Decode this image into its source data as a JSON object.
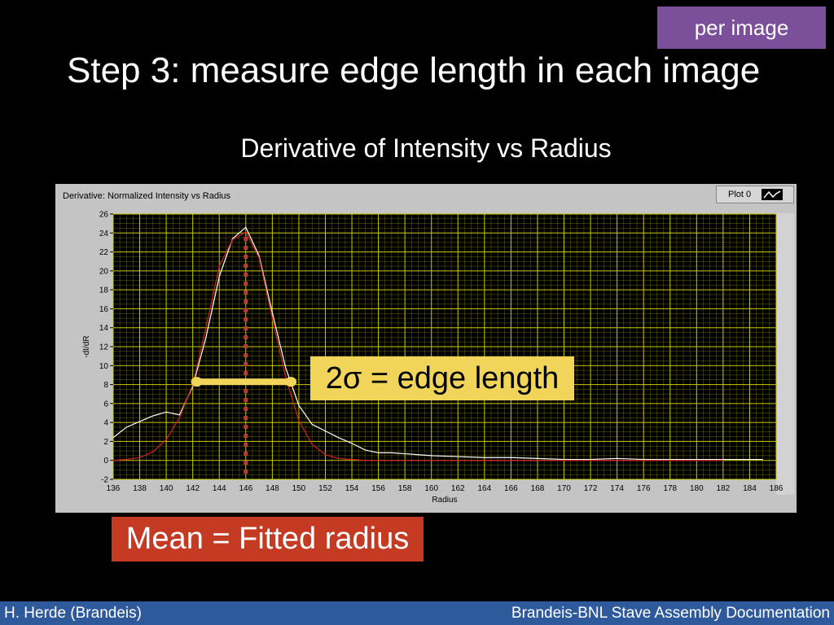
{
  "badge": "per image",
  "slide_title": "Step 3: measure edge length in each image",
  "subtitle": "Derivative of Intensity vs Radius",
  "panel": {
    "title": "Derivative: Normalized Intensity vs Radius",
    "legend_label": "Plot 0"
  },
  "callouts": {
    "edge_length": "2σ = edge length",
    "mean": "Mean = Fitted radius"
  },
  "footer": {
    "left": "H. Herde (Brandeis)",
    "right": "Brandeis-BNL Stave Assembly Documentation"
  },
  "colors": {
    "plot_bg": "#000000",
    "grid": "#c8c800",
    "data_line": "#ffffff",
    "fit_line": "#d42020",
    "mean_marker": "#c0392b",
    "edge_marker": "#f1d55a"
  },
  "chart_data": {
    "type": "line",
    "title": "Derivative: Normalized Intensity vs Radius",
    "xlabel": "Radius",
    "ylabel": "-dI/dR",
    "xlim": [
      136,
      186
    ],
    "ylim": [
      -2,
      26
    ],
    "xticks": [
      136,
      138,
      140,
      142,
      144,
      146,
      148,
      150,
      152,
      154,
      156,
      158,
      160,
      162,
      164,
      166,
      168,
      170,
      172,
      174,
      176,
      178,
      180,
      182,
      184,
      186
    ],
    "yticks": [
      -2,
      0,
      2,
      4,
      6,
      8,
      10,
      12,
      14,
      16,
      18,
      20,
      22,
      24,
      26
    ],
    "grid": true,
    "legend": [
      "Plot 0"
    ],
    "series": [
      {
        "name": "Plot 0",
        "x": [
          136,
          137,
          138,
          139,
          140,
          141,
          142,
          143,
          144,
          145,
          146,
          147,
          148,
          149,
          150,
          151,
          152,
          153,
          154,
          155,
          156,
          157,
          158,
          160,
          162,
          164,
          166,
          168,
          170,
          172,
          174,
          176,
          178,
          180,
          182,
          184,
          185
        ],
        "y": [
          2.4,
          3.5,
          4.1,
          4.7,
          5.1,
          4.8,
          7.8,
          13,
          19.4,
          23.4,
          24.6,
          21.6,
          15.6,
          9.8,
          5.8,
          3.8,
          3.1,
          2.4,
          1.8,
          1.1,
          0.8,
          0.8,
          0.7,
          0.5,
          0.4,
          0.3,
          0.3,
          0.2,
          0.1,
          0.1,
          0.2,
          0.1,
          0.1,
          0.1,
          0.1,
          0.1,
          0.1
        ]
      },
      {
        "x": [
          136,
          137,
          138,
          139,
          140,
          141,
          142,
          143,
          144,
          145,
          146,
          147,
          148,
          149,
          150,
          151,
          152,
          153,
          154,
          155,
          156,
          158,
          160,
          165,
          170,
          175,
          180,
          182
        ],
        "y": [
          0,
          0.1,
          0.3,
          0.9,
          2.2,
          4.5,
          8,
          14,
          20.5,
          23.3,
          24.1,
          21.4,
          15,
          8.8,
          4.2,
          1.7,
          0.6,
          0.2,
          0.1,
          0,
          0,
          0,
          0,
          0,
          0,
          0,
          0,
          0
        ]
      }
    ],
    "mean": 146,
    "edge_interval": [
      142.3,
      149.4
    ],
    "edge_interval_y": 8.3
  }
}
